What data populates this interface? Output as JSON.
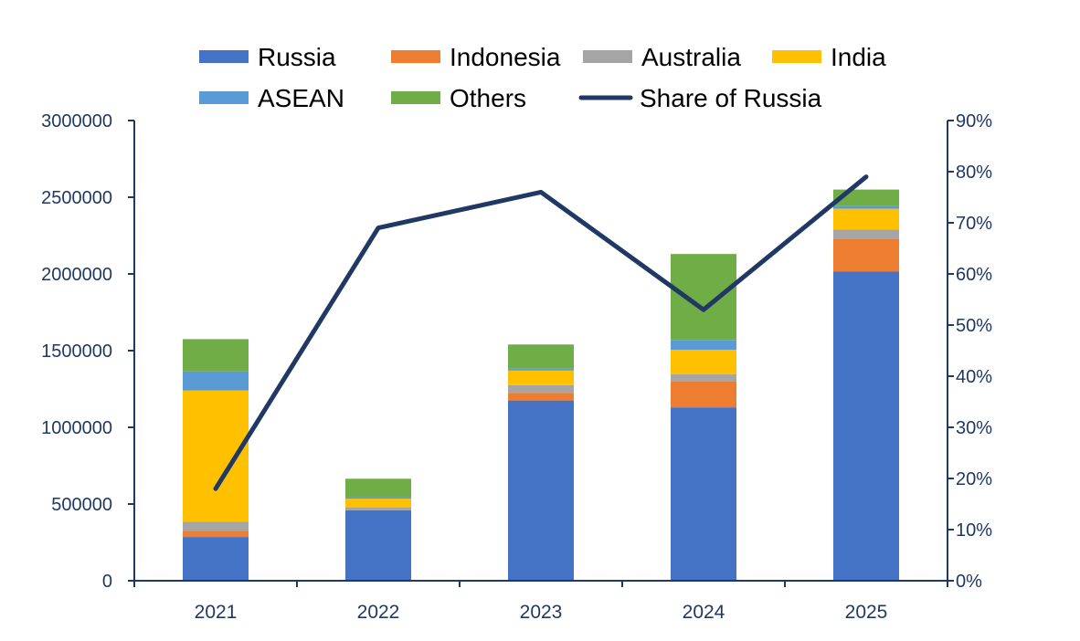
{
  "chart_data": {
    "type": "bar",
    "stacked": true,
    "categories": [
      "2021",
      "2022",
      "2023",
      "2024",
      "2025"
    ],
    "series": [
      {
        "name": "Russia",
        "color": "#4472c4",
        "values": [
          285000,
          460000,
          1175000,
          1130000,
          2015000
        ]
      },
      {
        "name": "Indonesia",
        "color": "#ed7d31",
        "values": [
          40000,
          0,
          50000,
          170000,
          215000
        ]
      },
      {
        "name": "Australia",
        "color": "#a5a5a5",
        "values": [
          60000,
          20000,
          50000,
          45000,
          60000
        ]
      },
      {
        "name": "India",
        "color": "#ffc000",
        "values": [
          855000,
          55000,
          95000,
          160000,
          135000
        ]
      },
      {
        "name": "ASEAN",
        "color": "#5b9bd5",
        "values": [
          125000,
          10000,
          15000,
          65000,
          20000
        ]
      },
      {
        "name": "Others",
        "color": "#70ad47",
        "values": [
          210000,
          120000,
          155000,
          560000,
          105000
        ]
      }
    ],
    "line_series": {
      "name": "Share of Russia",
      "color": "#203864",
      "axis": "right",
      "values": [
        0.18,
        0.69,
        0.76,
        0.53,
        0.79
      ]
    },
    "y_left": {
      "min": 0,
      "max": 3000000,
      "ticks": [
        "0",
        "500000",
        "1000000",
        "1500000",
        "2000000",
        "2500000",
        "3000000"
      ]
    },
    "y_right": {
      "min": 0,
      "max": 0.9,
      "ticks": [
        "0%",
        "10%",
        "20%",
        "30%",
        "40%",
        "50%",
        "60%",
        "70%",
        "80%",
        "90%"
      ]
    },
    "legend_position": "top",
    "grid": false
  }
}
